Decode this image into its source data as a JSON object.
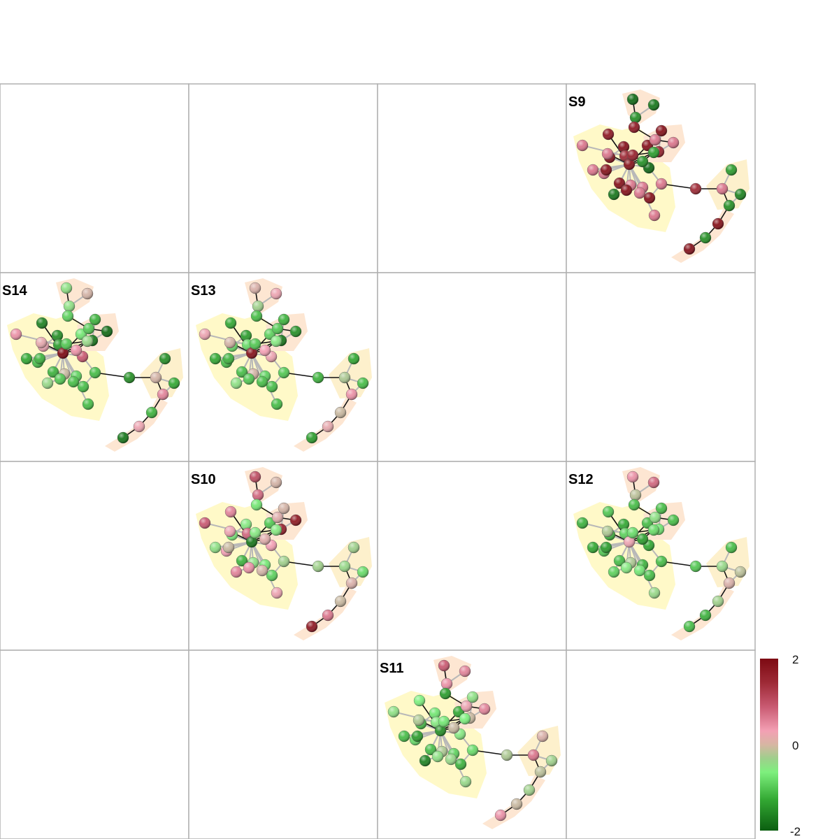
{
  "panels": [
    {
      "label": "",
      "row": 0,
      "col": 0
    },
    {
      "label": "",
      "row": 0,
      "col": 1
    },
    {
      "label": "",
      "row": 0,
      "col": 2
    },
    {
      "label": "S9",
      "row": 0,
      "col": 3
    },
    {
      "label": "S14",
      "row": 1,
      "col": 0
    },
    {
      "label": "S13",
      "row": 1,
      "col": 1
    },
    {
      "label": "",
      "row": 1,
      "col": 2
    },
    {
      "label": "",
      "row": 1,
      "col": 3
    },
    {
      "label": "",
      "row": 2,
      "col": 0
    },
    {
      "label": "S10",
      "row": 2,
      "col": 1
    },
    {
      "label": "",
      "row": 2,
      "col": 2
    },
    {
      "label": "S12",
      "row": 2,
      "col": 3
    },
    {
      "label": "",
      "row": 3,
      "col": 0
    },
    {
      "label": "",
      "row": 3,
      "col": 1
    },
    {
      "label": "S11",
      "row": 3,
      "col": 2
    },
    {
      "label": "",
      "row": 3,
      "col": 3
    }
  ],
  "colorbar": {
    "max_label": "2",
    "mid_label": "0",
    "min_label": "-2",
    "min": -2,
    "max": 2
  },
  "colors": {
    "high": "#7d0a12",
    "pink": "#f3a0b4",
    "neutral": "#c8b8a0",
    "light_green": "#7ef07e",
    "low": "#0b5e10",
    "hull_yellow": "#fff9c8",
    "hull_peach": "#fde6d2",
    "border": "#b0b0b0"
  },
  "network": {
    "node_values": {
      "S9": [
        -1.9,
        -1.8,
        -1.6,
        1.8,
        1.0,
        1.9,
        1.8,
        1.9,
        1.9,
        1.0,
        1.0,
        1.6,
        1.0,
        1.9,
        1.0,
        1.7,
        1.0,
        1.9,
        1.9,
        1.7,
        -1.5,
        -1.9,
        -1.6,
        1.0,
        1.0,
        1.0,
        1.9,
        1.9,
        -1.8,
        1.9,
        1.0,
        1.0,
        1.6,
        -1.5,
        1.0,
        -1.7,
        -1.6,
        1.9,
        -1.6,
        1.9
      ],
      "S14": [
        -0.5,
        0.2,
        -0.5,
        -1.7,
        0.8,
        -1.6,
        -1.0,
        -0.8,
        0.6,
        -1.2,
        0.5,
        -1.5,
        -1.1,
        -1.3,
        -1.9,
        -1.8,
        -1.4,
        -1.3,
        2.0,
        -1.1,
        -0.4,
        1.2,
        0.8,
        0.0,
        -1.2,
        -1.0,
        -1.2,
        -1.3,
        -0.4,
        -1.1,
        -1.2,
        -1.2,
        -1.6,
        -1.6,
        0.2,
        -1.4,
        0.9,
        -1.3,
        0.6,
        -1.8
      ],
      "S13": [
        0.3,
        0.6,
        -0.3,
        -1.4,
        0.6,
        -1.5,
        -1.2,
        -1.0,
        -0.9,
        -1.2,
        0.2,
        -0.9,
        -1.1,
        -1.3,
        -1.6,
        -1.8,
        -1.4,
        -1.3,
        1.9,
        -1.1,
        -0.6,
        0.6,
        0.7,
        0.2,
        -1.1,
        -1.0,
        -1.2,
        -1.2,
        -0.5,
        -1.1,
        -1.2,
        -1.2,
        -1.3,
        -1.4,
        -0.2,
        -1.2,
        0.8,
        0.0,
        0.5,
        -1.5
      ],
      "S10": [
        1.3,
        0.2,
        1.1,
        0.9,
        1.2,
        -0.6,
        -0.8,
        -1.1,
        -0.7,
        0.7,
        0.6,
        1.1,
        0.4,
        0.2,
        1.8,
        1.7,
        -0.5,
        0.0,
        -1.8,
        -0.6,
        -0.6,
        0.7,
        0.4,
        -0.5,
        -0.3,
        -0.8,
        -1.0,
        -1.3,
        0.9,
        0.8,
        0.2,
        0.6,
        -0.3,
        -0.3,
        -0.4,
        -0.9,
        0.3,
        0.0,
        1.0,
        1.8
      ],
      "S12": [
        0.8,
        1.1,
        -0.1,
        -1.1,
        -1.3,
        -1.4,
        -1.2,
        -1.2,
        -1.3,
        -1.1,
        -0.2,
        -1.0,
        -0.5,
        -1.2,
        -1.2,
        -0.8,
        -1.4,
        -1.5,
        0.6,
        -0.9,
        -0.9,
        -1.4,
        -1.5,
        -0.2,
        -1.2,
        -1.3,
        -1.2,
        -1.2,
        -1.0,
        -0.6,
        -0.8,
        -0.4,
        -1.1,
        -1.2,
        -0.4,
        -0.1,
        0.3,
        -0.3,
        -1.3,
        -1.2
      ],
      "S11": [
        1.2,
        0.9,
        0.8,
        -0.7,
        -0.5,
        -0.8,
        -1.5,
        -1.4,
        -1.2,
        -0.9,
        -0.2,
        -0.6,
        0.6,
        -0.5,
        0.9,
        0.0,
        -1.2,
        -1.5,
        -1.6,
        -0.8,
        -0.7,
        -0.6,
        0.0,
        -0.2,
        -0.9,
        -1.0,
        -1.3,
        -1.2,
        -1.7,
        -0.5,
        -0.4,
        -0.4,
        -0.2,
        0.3,
        1.0,
        -0.3,
        -0.1,
        -0.3,
        0.0,
        0.8
      ]
    }
  }
}
